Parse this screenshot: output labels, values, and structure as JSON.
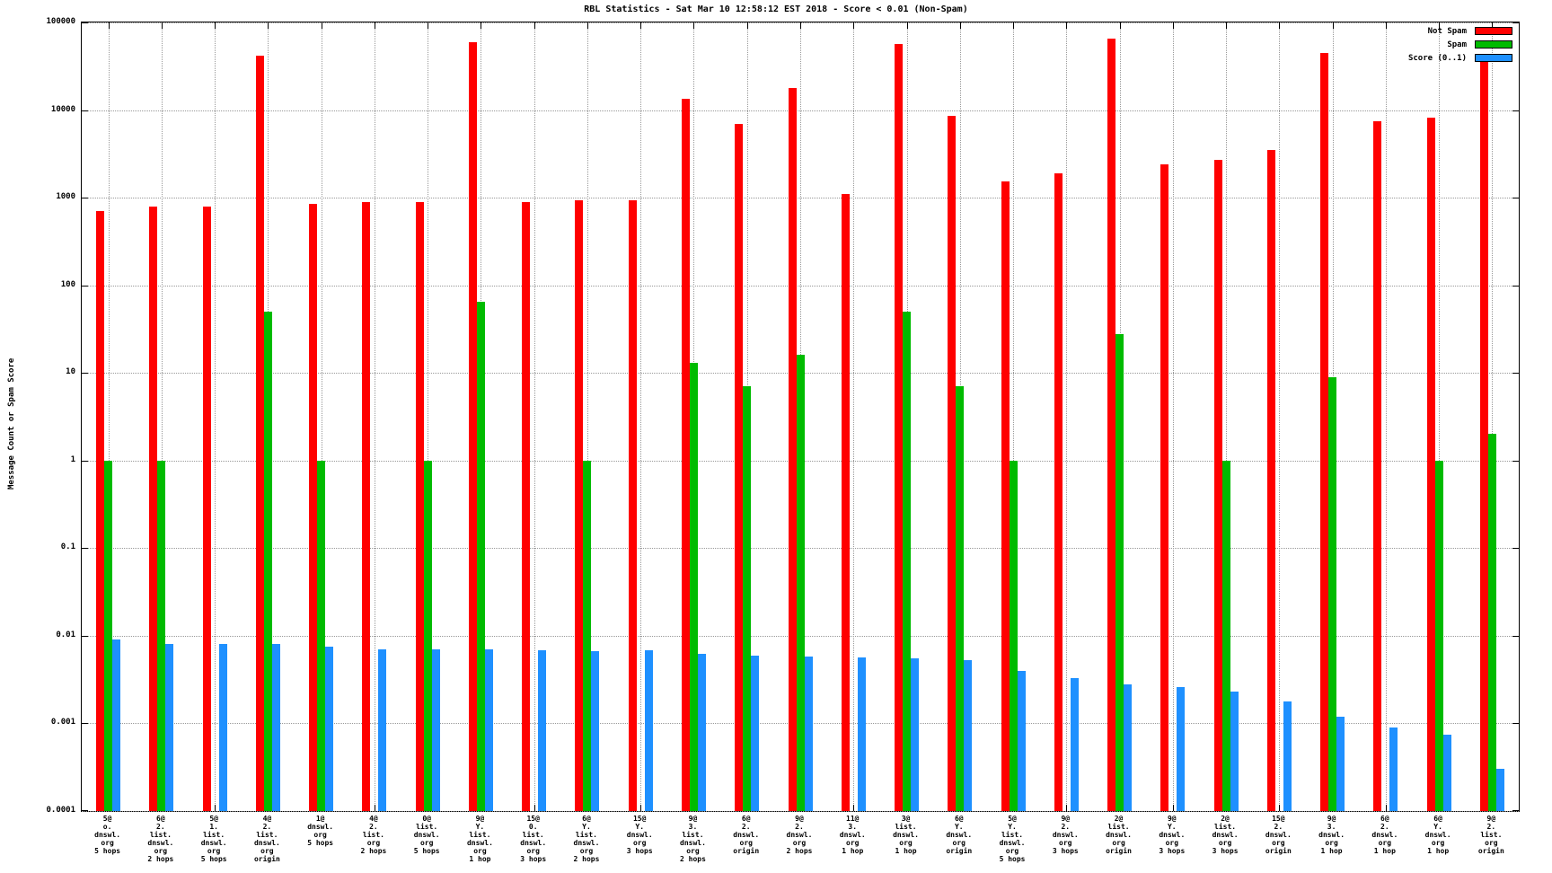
{
  "chart_data": {
    "type": "bar",
    "title": "RBL Statistics - Sat Mar 10 12:58:12 EST 2018 - Score < 0.01 (Non-Spam)",
    "ylabel": "Message Count or Spam Score",
    "xlabel": "",
    "y_scale": "log",
    "ylim": [
      0.0001,
      100000
    ],
    "y_tick_labels": [
      "100000",
      "10000",
      "1000",
      "100",
      "10",
      "1",
      "0.1",
      "0.01",
      "0.001",
      "0.0001"
    ],
    "y_tick_values": [
      100000,
      10000,
      1000,
      100,
      10,
      1,
      0.1,
      0.01,
      0.001,
      0.0001
    ],
    "grid": true,
    "legend_position": "top-right",
    "categories": [
      [
        "5@",
        "o.",
        "dnswl.",
        "org",
        "5 hops"
      ],
      [
        "6@",
        "2.",
        "list.",
        "dnswl.",
        "org",
        "2 hops"
      ],
      [
        "5@",
        "1.",
        "list.",
        "dnswl.",
        "org",
        "5 hops"
      ],
      [
        "4@",
        "2.",
        "list.",
        "dnswl.",
        "org",
        "origin"
      ],
      [
        "1@",
        "dnswl.",
        "org",
        "5 hops"
      ],
      [
        "4@",
        "2.",
        "list.",
        "org",
        "2 hops"
      ],
      [
        "0@",
        "list.",
        "dnswl.",
        "org",
        "5 hops"
      ],
      [
        "9@",
        "Y.",
        "list.",
        "dnswl.",
        "org",
        "1 hop"
      ],
      [
        "15@",
        "0.",
        "list.",
        "dnswl.",
        "org",
        "3 hops"
      ],
      [
        "6@",
        "Y.",
        "list.",
        "dnswl.",
        "org",
        "2 hops"
      ],
      [
        "15@",
        "Y.",
        "dnswl.",
        "org",
        "3 hops"
      ],
      [
        "9@",
        "3.",
        "list.",
        "dnswl.",
        "org",
        "2 hops"
      ],
      [
        "6@",
        "2.",
        "dnswl.",
        "org",
        "origin"
      ],
      [
        "9@",
        "2.",
        "dnswl.",
        "org",
        "2 hops"
      ],
      [
        "11@",
        "3.",
        "dnswl.",
        "org",
        "1 hop"
      ],
      [
        "3@",
        "list.",
        "dnswl.",
        "org",
        "1 hop"
      ],
      [
        "6@",
        "Y.",
        "dnswl.",
        "org",
        "origin"
      ],
      [
        "5@",
        "Y.",
        "list.",
        "dnswl.",
        "org",
        "5 hops"
      ],
      [
        "9@",
        "2.",
        "dnswl.",
        "org",
        "3 hops"
      ],
      [
        "2@",
        "list.",
        "dnswl.",
        "org",
        "origin"
      ],
      [
        "9@",
        "Y.",
        "dnswl.",
        "org",
        "3 hops"
      ],
      [
        "2@",
        "list.",
        "dnswl.",
        "org",
        "3 hops"
      ],
      [
        "15@",
        "2.",
        "dnswl.",
        "org",
        "origin"
      ],
      [
        "9@",
        "3.",
        "dnswl.",
        "org",
        "1 hop"
      ],
      [
        "6@",
        "2.",
        "dnswl.",
        "org",
        "1 hop"
      ],
      [
        "6@",
        "Y.",
        "dnswl.",
        "org",
        "1 hop"
      ],
      [
        "9@",
        "2.",
        "list.",
        "org",
        "origin"
      ]
    ],
    "series": [
      {
        "name": "Not Spam",
        "color": "#ff0000",
        "values": [
          700,
          800,
          800,
          42000,
          850,
          900,
          900,
          60000,
          900,
          930,
          930,
          13500,
          7000,
          18000,
          1100,
          57000,
          8500,
          1550,
          1900,
          65000,
          2400,
          2700,
          3500,
          45000,
          7500,
          8200,
          42000
        ]
      },
      {
        "name": "Spam",
        "color": "#00bb00",
        "values": [
          1,
          1,
          null,
          50,
          1,
          null,
          1,
          65,
          null,
          1,
          null,
          13,
          7,
          16,
          null,
          50,
          7,
          1,
          null,
          28,
          null,
          1,
          null,
          9,
          null,
          1,
          2
        ]
      },
      {
        "name": "Score (0..1)",
        "color": "#1e90ff",
        "values": [
          0.009,
          0.008,
          0.008,
          0.008,
          0.0075,
          0.007,
          0.007,
          0.007,
          0.0068,
          0.0067,
          0.0068,
          0.0062,
          0.006,
          0.0058,
          0.0057,
          0.0055,
          0.0053,
          0.004,
          0.0033,
          0.0028,
          0.0026,
          0.0023,
          0.0018,
          0.0012,
          0.0009,
          0.00075,
          0.0003
        ]
      }
    ],
    "colors": {
      "not_spam": "#ff0000",
      "spam": "#00bb00",
      "score": "#1e90ff",
      "grid": "#999999",
      "border": "#000000",
      "background": "#ffffff"
    }
  }
}
